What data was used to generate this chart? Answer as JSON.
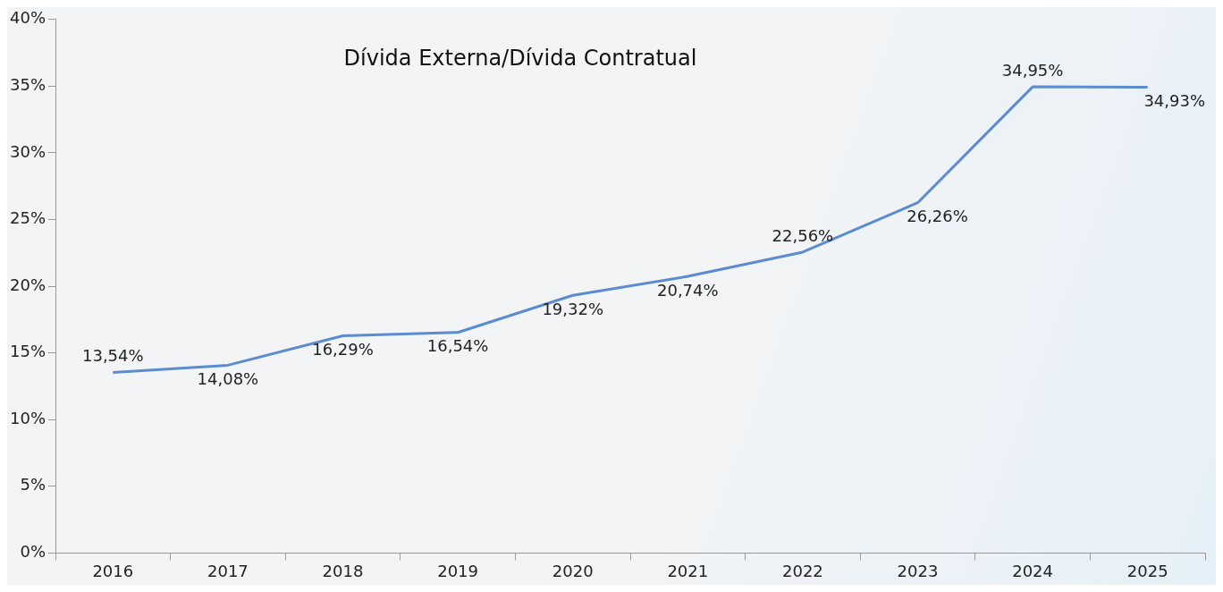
{
  "chart_data": {
    "type": "line",
    "title": "Dívida Externa/Dívida Contratual",
    "categories": [
      "2016",
      "2017",
      "2018",
      "2019",
      "2020",
      "2021",
      "2022",
      "2023",
      "2024",
      "2025"
    ],
    "series": [
      {
        "color": "#5b8bd0",
        "values": [
          13.54,
          14.08,
          16.29,
          16.54,
          19.32,
          20.74,
          22.56,
          26.26,
          34.95,
          34.93
        ],
        "value_labels": [
          "13,54%",
          "14,08%",
          "16,29%",
          "16,54%",
          "19,32%",
          "20,74%",
          "22,56%",
          "26,26%",
          "34,95%",
          "34,93%"
        ]
      }
    ],
    "ylim": [
      0,
      40
    ],
    "yticks": [
      {
        "value": 0,
        "label": "0%"
      },
      {
        "value": 5,
        "label": "5%"
      },
      {
        "value": 10,
        "label": "10%"
      },
      {
        "value": 15,
        "label": "15%"
      },
      {
        "value": 20,
        "label": "20%"
      },
      {
        "value": 25,
        "label": "25%"
      },
      {
        "value": 30,
        "label": "30%"
      },
      {
        "value": 35,
        "label": "35%"
      },
      {
        "value": 40,
        "label": "40%"
      }
    ],
    "grid": false,
    "legend": false,
    "marker": "none",
    "line_style": "solid"
  }
}
